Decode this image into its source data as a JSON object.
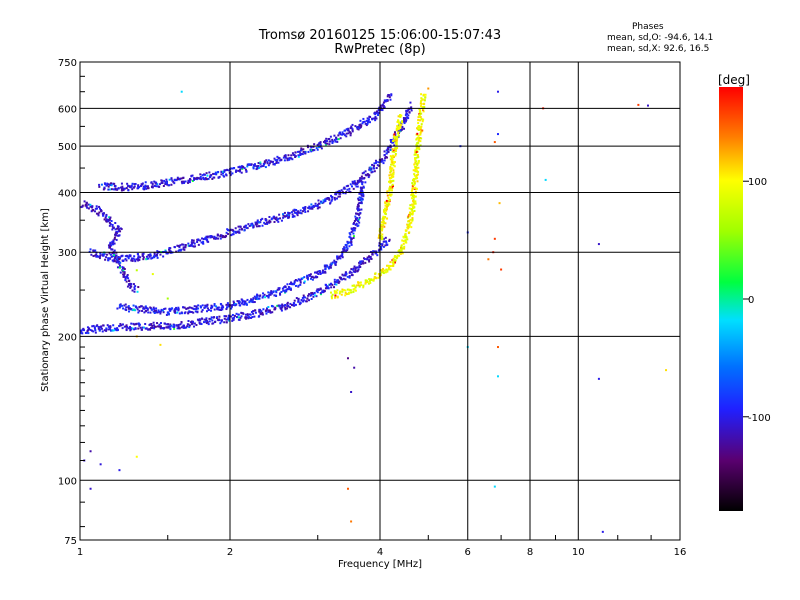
{
  "header": {
    "title": "Tromsø 20160125 15:06:00-15:07:43",
    "subtitle": "RwPretec (8p)"
  },
  "stats": {
    "heading": "Phases",
    "line1": "mean, sd,O: -94.6, 14.1",
    "line2": "mean, sd,X:  92.6, 16.5"
  },
  "chart_data": {
    "type": "scatter",
    "xlabel": "Frequency [MHz]",
    "ylabel": "Stationary phase Virtual Height [km]",
    "xscale": "log",
    "yscale": "log",
    "xlim": [
      1,
      16
    ],
    "ylim": [
      75,
      750
    ],
    "xticks": [
      1,
      2,
      4,
      6,
      8,
      10,
      16
    ],
    "xtick_labels": [
      "1",
      "2",
      "4",
      "6",
      "8",
      "10",
      "16"
    ],
    "yticks": [
      75,
      100,
      200,
      300,
      400,
      500,
      600,
      750
    ],
    "ytick_labels": [
      "75",
      "100",
      "200",
      "300",
      "400",
      "500",
      "600",
      "750"
    ],
    "grid": true,
    "colorbar": {
      "label": "[deg]",
      "range": [
        -180,
        180
      ],
      "ticks": [
        100,
        0,
        -100
      ],
      "tick_labels": [
        "100",
        "0",
        "-100"
      ]
    },
    "series": [
      {
        "traces": [
          {
            "phase": -105,
            "points": [
              [
                1.0,
                205
              ],
              [
                1.1,
                208
              ],
              [
                1.2,
                209
              ],
              [
                1.4,
                210
              ],
              [
                1.6,
                211
              ],
              [
                1.8,
                215
              ],
              [
                2.0,
                218
              ],
              [
                2.3,
                224
              ],
              [
                2.6,
                232
              ],
              [
                2.9,
                242
              ],
              [
                3.2,
                256
              ],
              [
                3.5,
                272
              ],
              [
                3.8,
                293
              ],
              [
                4.0,
                305
              ],
              [
                4.15,
                320
              ]
            ]
          },
          {
            "phase": -105,
            "points": [
              [
                1.05,
                300
              ],
              [
                1.2,
                290
              ],
              [
                1.4,
                295
              ],
              [
                1.7,
                313
              ],
              [
                2.0,
                330
              ],
              [
                2.3,
                345
              ],
              [
                2.6,
                358
              ],
              [
                2.9,
                372
              ],
              [
                3.2,
                388
              ],
              [
                3.5,
                410
              ],
              [
                3.8,
                440
              ],
              [
                4.1,
                478
              ],
              [
                4.3,
                520
              ],
              [
                4.5,
                570
              ],
              [
                4.6,
                610
              ]
            ]
          },
          {
            "phase": -105,
            "points": [
              [
                1.1,
                412
              ],
              [
                1.3,
                410
              ],
              [
                1.5,
                420
              ],
              [
                1.8,
                432
              ],
              [
                2.1,
                446
              ],
              [
                2.4,
                462
              ],
              [
                2.7,
                480
              ],
              [
                3.0,
                500
              ],
              [
                3.3,
                522
              ],
              [
                3.6,
                548
              ],
              [
                3.9,
                578
              ],
              [
                4.1,
                610
              ],
              [
                4.2,
                640
              ]
            ]
          },
          {
            "phase": -100,
            "points": [
              [
                1.2,
                230
              ],
              [
                1.5,
                225
              ],
              [
                2.0,
                232
              ],
              [
                2.5,
                248
              ],
              [
                3.0,
                270
              ],
              [
                3.3,
                290
              ],
              [
                3.5,
                320
              ],
              [
                3.6,
                350
              ],
              [
                3.65,
                380
              ],
              [
                3.7,
                420
              ]
            ]
          },
          {
            "phase": -110,
            "points": [
              [
                1.0,
                380
              ],
              [
                1.05,
                372
              ],
              [
                1.1,
                365
              ],
              [
                1.2,
                330
              ],
              [
                1.15,
                310
              ],
              [
                1.25,
                260
              ],
              [
                1.3,
                250
              ]
            ]
          },
          {
            "phase": 95,
            "points": [
              [
                3.2,
                243
              ],
              [
                3.5,
                250
              ],
              [
                3.8,
                262
              ],
              [
                4.0,
                270
              ],
              [
                4.2,
                280
              ],
              [
                4.4,
                300
              ],
              [
                4.55,
                330
              ],
              [
                4.65,
                370
              ],
              [
                4.7,
                420
              ],
              [
                4.75,
                480
              ],
              [
                4.8,
                540
              ],
              [
                4.85,
                600
              ],
              [
                4.9,
                640
              ]
            ]
          },
          {
            "phase": 100,
            "points": [
              [
                4.0,
                320
              ],
              [
                4.1,
                360
              ],
              [
                4.2,
                410
              ],
              [
                4.25,
                470
              ],
              [
                4.3,
                520
              ],
              [
                4.4,
                580
              ]
            ]
          }
        ],
        "extra_points": [
          [
            1.02,
            110,
            -110
          ],
          [
            1.05,
            115,
            -120
          ],
          [
            1.1,
            108,
            -105
          ],
          [
            1.2,
            105,
            -100
          ],
          [
            1.3,
            112,
            100
          ],
          [
            1.05,
            96,
            -110
          ],
          [
            1.6,
            650,
            -20
          ],
          [
            1.3,
            200,
            120
          ],
          [
            1.45,
            192,
            110
          ],
          [
            1.4,
            270,
            90
          ],
          [
            1.3,
            275,
            70
          ],
          [
            1.5,
            240,
            60
          ],
          [
            3.45,
            96,
            150
          ],
          [
            3.5,
            82,
            140
          ],
          [
            3.45,
            180,
            -130
          ],
          [
            3.55,
            172,
            -120
          ],
          [
            3.5,
            153,
            -110
          ],
          [
            5.0,
            660,
            130
          ],
          [
            6.9,
            650,
            -100
          ],
          [
            6.9,
            530,
            -90
          ],
          [
            6.8,
            510,
            150
          ],
          [
            6.8,
            320,
            160
          ],
          [
            6.75,
            300,
            170
          ],
          [
            6.6,
            290,
            140
          ],
          [
            7.0,
            276,
            160
          ],
          [
            6.95,
            380,
            120
          ],
          [
            6.0,
            190,
            -20
          ],
          [
            6.9,
            190,
            150
          ],
          [
            6.9,
            165,
            -20
          ],
          [
            6.8,
            97,
            -20
          ],
          [
            8.5,
            600,
            170
          ],
          [
            8.6,
            425,
            -20
          ],
          [
            11.0,
            312,
            -110
          ],
          [
            11.0,
            163,
            -100
          ],
          [
            11.2,
            78,
            -100
          ],
          [
            13.2,
            610,
            160
          ],
          [
            13.8,
            608,
            -110
          ],
          [
            15.0,
            170,
            110
          ],
          [
            5.8,
            500,
            -90
          ],
          [
            6.0,
            330,
            -90
          ]
        ]
      }
    ]
  }
}
